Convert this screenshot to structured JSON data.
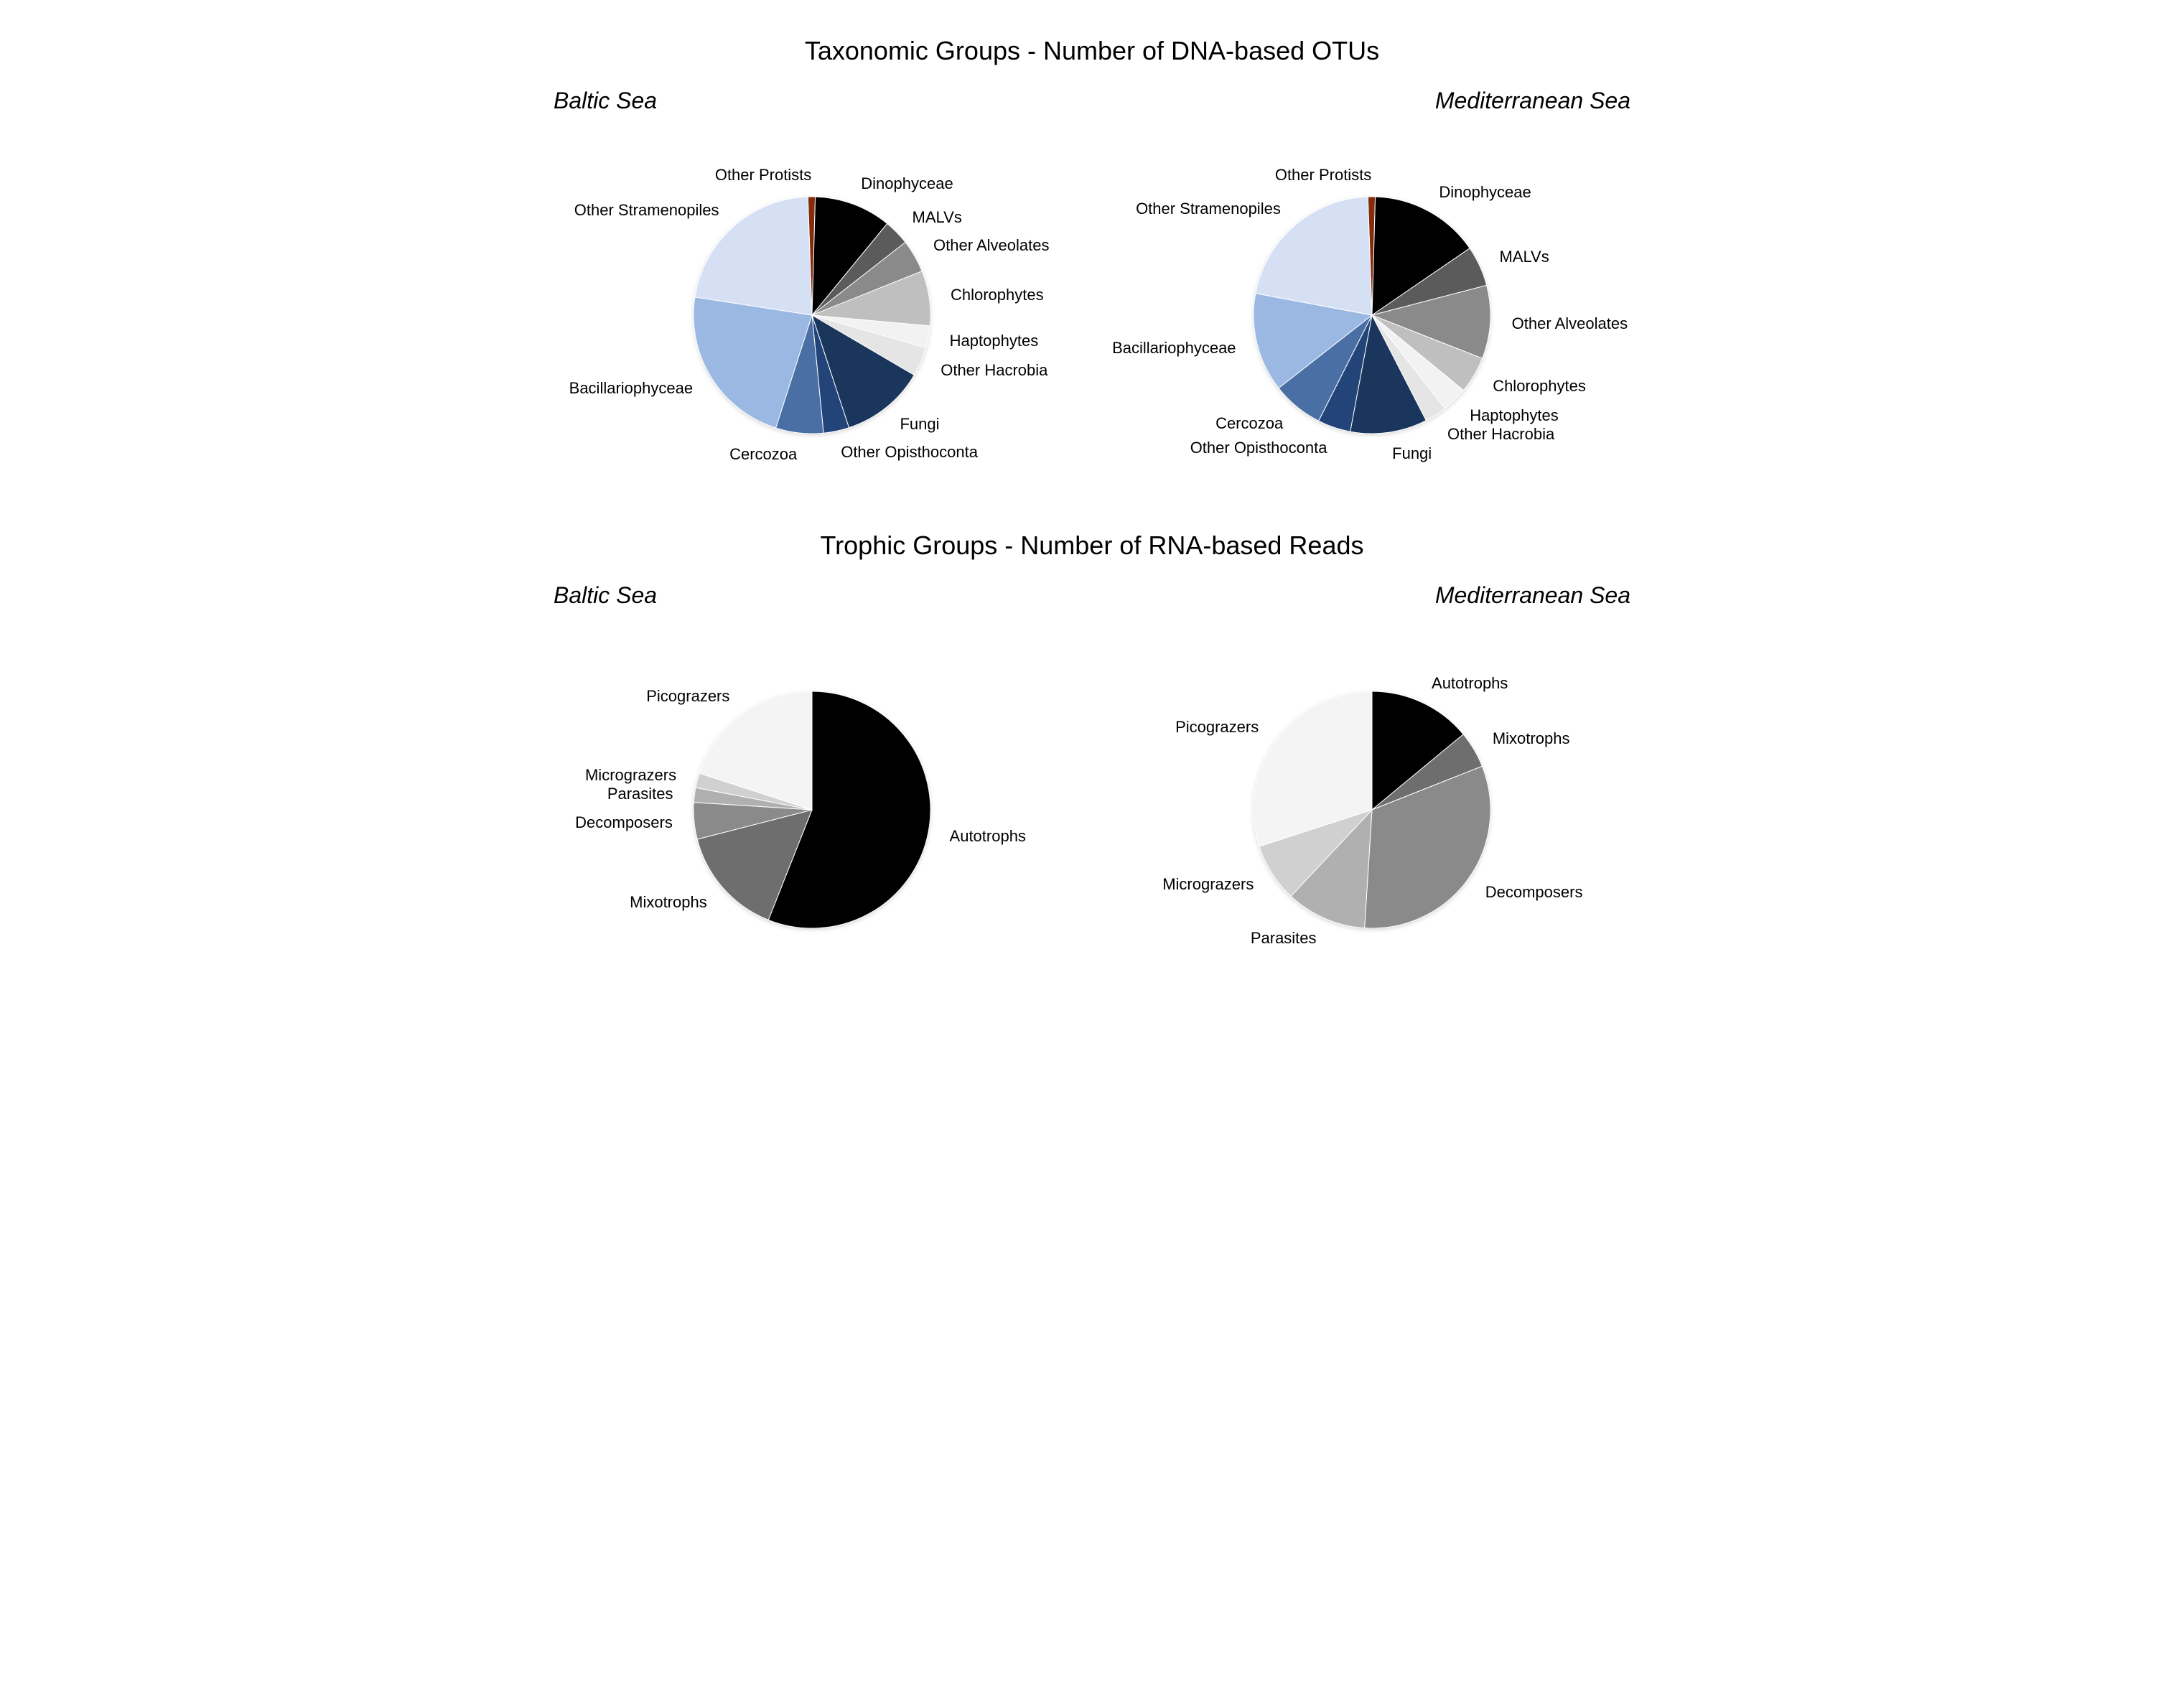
{
  "layout": {
    "font_family": "Arial",
    "title_fontsize": 36,
    "subtitle_fontsize": 32,
    "label_fontsize": 22,
    "background_color": "#ffffff",
    "pie_radius": 165,
    "shadow": true
  },
  "sections": [
    {
      "title": "Taxonomic Groups - Number of DNA-based OTUs",
      "charts": [
        {
          "subtitle": "Baltic Sea",
          "type": "pie",
          "start_angle_deg": -2,
          "slices": [
            {
              "label": "Other Protists",
              "value": 1.0,
              "color": "#862b0b"
            },
            {
              "label": "Dinophyceae",
              "value": 10.5,
              "color": "#000000"
            },
            {
              "label": "MALVs",
              "value": 3.5,
              "color": "#5b5b5b"
            },
            {
              "label": "Other Alveolates",
              "value": 4.5,
              "color": "#8a8a8a"
            },
            {
              "label": "Chlorophytes",
              "value": 7.5,
              "color": "#bfbfbf"
            },
            {
              "label": "Haptophytes",
              "value": 3.0,
              "color": "#f2f2f2"
            },
            {
              "label": "Other Hacrobia",
              "value": 4.0,
              "color": "#e5e5e5"
            },
            {
              "label": "Fungi",
              "value": 11.5,
              "color": "#1b365d"
            },
            {
              "label": "Other Opisthoconta",
              "value": 3.5,
              "color": "#234478"
            },
            {
              "label": "Cercozoa",
              "value": 6.5,
              "color": "#4a6fa5"
            },
            {
              "label": "Bacillariophyceae",
              "value": 22.5,
              "color": "#9bb8e3"
            },
            {
              "label": "Other Stramenopiles",
              "value": 22.0,
              "color": "#d6e0f5"
            }
          ]
        },
        {
          "subtitle": "Mediterranean Sea",
          "type": "pie",
          "start_angle_deg": -2,
          "slices": [
            {
              "label": "Other Protists",
              "value": 1.0,
              "color": "#862b0b"
            },
            {
              "label": "Dinophyceae",
              "value": 15.0,
              "color": "#000000"
            },
            {
              "label": "MALVs",
              "value": 5.5,
              "color": "#5b5b5b"
            },
            {
              "label": "Other Alveolates",
              "value": 10.0,
              "color": "#8a8a8a"
            },
            {
              "label": "Chlorophytes",
              "value": 5.0,
              "color": "#bfbfbf"
            },
            {
              "label": "Haptophytes",
              "value": 3.5,
              "color": "#f2f2f2"
            },
            {
              "label": "Other Hacrobia",
              "value": 3.0,
              "color": "#e5e5e5"
            },
            {
              "label": "Fungi",
              "value": 10.5,
              "color": "#1b365d"
            },
            {
              "label": "Other Opisthoconta",
              "value": 4.5,
              "color": "#234478"
            },
            {
              "label": "Cercozoa",
              "value": 7.0,
              "color": "#4a6fa5"
            },
            {
              "label": "Bacillariophyceae",
              "value": 13.5,
              "color": "#9bb8e3"
            },
            {
              "label": "Other Stramenopiles",
              "value": 21.5,
              "color": "#d6e0f5"
            }
          ]
        }
      ]
    },
    {
      "title": "Trophic Groups - Number of RNA-based Reads",
      "charts": [
        {
          "subtitle": "Baltic Sea",
          "type": "pie",
          "start_angle_deg": 0,
          "slices": [
            {
              "label": "Autotrophs",
              "value": 56.0,
              "color": "#000000"
            },
            {
              "label": "Mixotrophs",
              "value": 15.0,
              "color": "#6e6e6e"
            },
            {
              "label": "Decomposers",
              "value": 5.0,
              "color": "#8a8a8a"
            },
            {
              "label": "Parasites",
              "value": 2.0,
              "color": "#b0b0b0"
            },
            {
              "label": "Micrograzers",
              "value": 2.0,
              "color": "#d0d0d0"
            },
            {
              "label": "Picograzers",
              "value": 20.0,
              "color": "#f4f4f4"
            }
          ]
        },
        {
          "subtitle": "Mediterranean Sea",
          "type": "pie",
          "start_angle_deg": 0,
          "slices": [
            {
              "label": "Autotrophs",
              "value": 14.0,
              "color": "#000000"
            },
            {
              "label": "Mixotrophs",
              "value": 5.0,
              "color": "#6e6e6e"
            },
            {
              "label": "Decomposers",
              "value": 32.0,
              "color": "#8a8a8a"
            },
            {
              "label": "Parasites",
              "value": 11.0,
              "color": "#b0b0b0"
            },
            {
              "label": "Micrograzers",
              "value": 8.0,
              "color": "#d0d0d0"
            },
            {
              "label": "Picograzers",
              "value": 30.0,
              "color": "#f4f4f4"
            }
          ]
        }
      ]
    }
  ]
}
